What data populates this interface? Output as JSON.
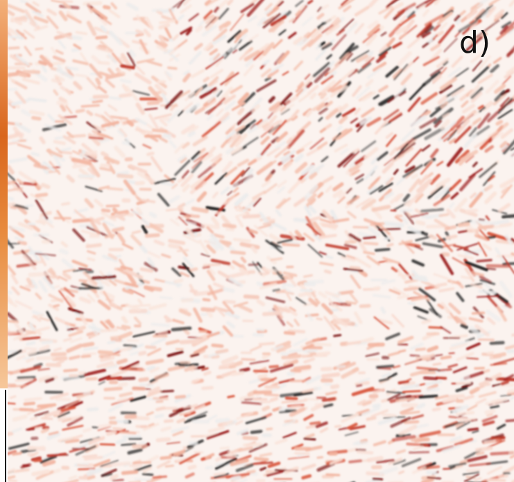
{
  "panel": {
    "label": "d)"
  }
}
